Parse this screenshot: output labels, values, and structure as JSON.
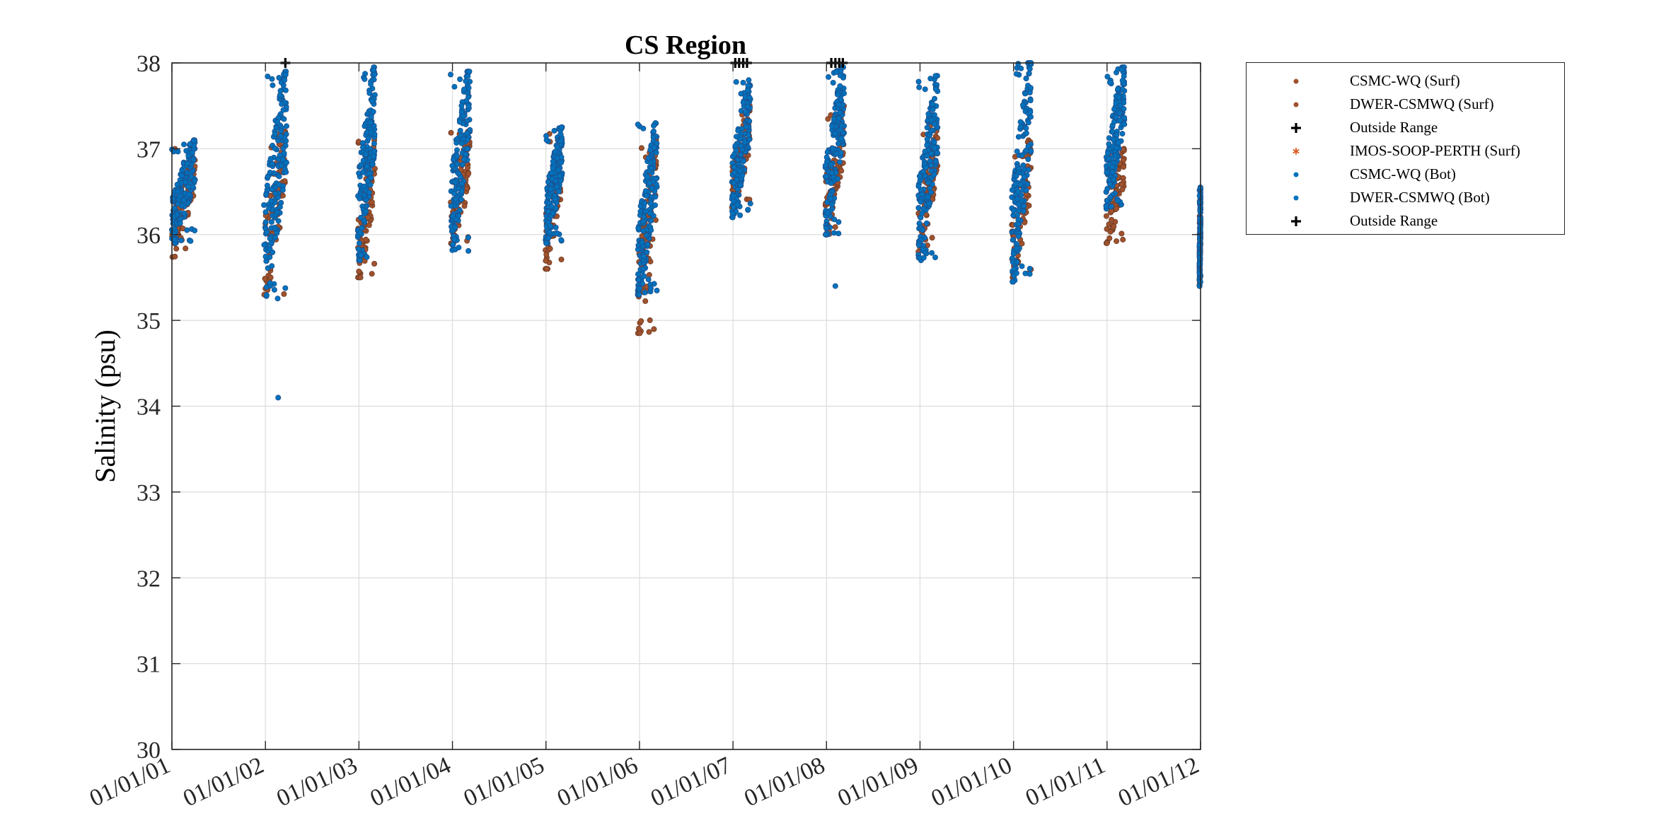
{
  "chart_data": {
    "type": "scatter",
    "title": "CS Region",
    "xlabel": "",
    "ylabel": "Salinity (psu)",
    "ylim": [
      30,
      38
    ],
    "yticks": [
      "30",
      "31",
      "32",
      "33",
      "34",
      "35",
      "36",
      "37",
      "38"
    ],
    "xlim": [
      "2001-01-01",
      "2012-01-01"
    ],
    "xticks": [
      "01/01/01",
      "01/01/02",
      "01/01/03",
      "01/01/04",
      "01/01/05",
      "01/01/06",
      "01/01/07",
      "01/01/08",
      "01/01/09",
      "01/01/10",
      "01/01/11",
      "01/01/12"
    ],
    "grid": true,
    "legend_position": "outside-right",
    "series": [
      {
        "name": "CSMC-WQ (Surf)",
        "marker": "circle",
        "color": "#A0522D",
        "clusters": [
          {
            "x0": "2001-01-01",
            "x1": "2001-04-01",
            "ymin": 35.7,
            "ymax": 37.0
          },
          {
            "x0": "2001-12-25",
            "x1": "2002-03-20",
            "ymin": 35.3,
            "ymax": 37.2
          },
          {
            "x0": "2002-12-28",
            "x1": "2003-03-05",
            "ymin": 35.5,
            "ymax": 37.1
          },
          {
            "x0": "2003-12-25",
            "x1": "2004-03-10",
            "ymin": 35.8,
            "ymax": 37.2
          },
          {
            "x0": "2004-12-30",
            "x1": "2005-03-05",
            "ymin": 35.6,
            "ymax": 37.2
          },
          {
            "x0": "2005-12-25",
            "x1": "2006-03-10",
            "ymin": 34.85,
            "ymax": 37.1
          },
          {
            "x0": "2006-12-28",
            "x1": "2007-03-10",
            "ymin": 36.3,
            "ymax": 37.5
          },
          {
            "x0": "2007-12-28",
            "x1": "2008-03-10",
            "ymin": 36.0,
            "ymax": 37.5
          },
          {
            "x0": "2008-12-25",
            "x1": "2009-03-10",
            "ymin": 35.8,
            "ymax": 37.3
          },
          {
            "x0": "2009-12-25",
            "x1": "2010-03-10",
            "ymin": 35.5,
            "ymax": 37.1
          },
          {
            "x0": "2010-12-28",
            "x1": "2011-03-10",
            "ymin": 35.9,
            "ymax": 37.0
          },
          {
            "x0": "2011-12-28",
            "x1": "2012-01-01",
            "ymin": 35.4,
            "ymax": 36.3
          }
        ]
      },
      {
        "name": "DWER-CSMWQ (Surf)",
        "marker": "circle",
        "color": "#A0522D",
        "clusters": []
      },
      {
        "name": "Outside Range",
        "marker": "plus",
        "color": "#000000",
        "points": [
          {
            "x": "2002-03-20",
            "y": 38.0
          },
          {
            "x": "2007-01-10",
            "y": 38.0
          },
          {
            "x": "2007-01-25",
            "y": 38.0
          },
          {
            "x": "2007-02-10",
            "y": 38.0
          },
          {
            "x": "2007-02-25",
            "y": 38.0
          },
          {
            "x": "2008-01-20",
            "y": 38.0
          },
          {
            "x": "2008-02-05",
            "y": 38.0
          },
          {
            "x": "2008-02-20",
            "y": 38.0
          },
          {
            "x": "2008-03-05",
            "y": 38.0
          }
        ]
      },
      {
        "name": "IMOS-SOOP-PERTH (Surf)",
        "marker": "star",
        "color": "#D95319",
        "clusters": []
      },
      {
        "name": "CSMC-WQ (Bot)",
        "marker": "circle",
        "color": "#0072BD",
        "clusters": [
          {
            "x0": "2001-01-01",
            "x1": "2001-04-01",
            "ymin": 35.9,
            "ymax": 37.1
          },
          {
            "x0": "2001-12-25",
            "x1": "2002-03-25",
            "ymin": 35.25,
            "ymax": 37.9
          },
          {
            "x0": "2002-12-28",
            "x1": "2003-03-05",
            "ymin": 35.7,
            "ymax": 37.95
          },
          {
            "x0": "2003-12-25",
            "x1": "2004-03-10",
            "ymin": 35.8,
            "ymax": 37.9
          },
          {
            "x0": "2004-12-30",
            "x1": "2005-03-05",
            "ymin": 35.9,
            "ymax": 37.25
          },
          {
            "x0": "2005-12-25",
            "x1": "2006-03-10",
            "ymin": 35.3,
            "ymax": 37.3
          },
          {
            "x0": "2006-12-28",
            "x1": "2007-03-10",
            "ymin": 36.2,
            "ymax": 37.8
          },
          {
            "x0": "2007-12-28",
            "x1": "2008-03-10",
            "ymin": 36.0,
            "ymax": 37.95
          },
          {
            "x0": "2008-12-25",
            "x1": "2009-03-10",
            "ymin": 35.7,
            "ymax": 37.85
          },
          {
            "x0": "2009-12-25",
            "x1": "2010-03-10",
            "ymin": 35.45,
            "ymax": 38.0
          },
          {
            "x0": "2010-12-28",
            "x1": "2011-03-10",
            "ymin": 36.3,
            "ymax": 37.95
          },
          {
            "x0": "2011-12-28",
            "x1": "2012-01-01",
            "ymin": 35.4,
            "ymax": 36.55
          }
        ],
        "points": [
          {
            "x": "2002-02-20",
            "y": 34.1
          },
          {
            "x": "2008-02-05",
            "y": 35.4
          }
        ]
      },
      {
        "name": "DWER-CSMWQ (Bot)",
        "marker": "circle",
        "color": "#0072BD",
        "clusters": []
      },
      {
        "name": "Outside Range",
        "marker": "plus",
        "color": "#000000",
        "points": []
      }
    ]
  },
  "legend": {
    "items": [
      {
        "label": "CSMC-WQ (Surf)",
        "symbol": "circle",
        "color": "#A0522D"
      },
      {
        "label": "DWER-CSMWQ (Surf)",
        "symbol": "circle",
        "color": "#A0522D"
      },
      {
        "label": "Outside Range",
        "symbol": "plus",
        "color": "#000000"
      },
      {
        "label": "IMOS-SOOP-PERTH (Surf)",
        "symbol": "star",
        "color": "#D95319"
      },
      {
        "label": "CSMC-WQ (Bot)",
        "symbol": "circle",
        "color": "#0072BD"
      },
      {
        "label": "DWER-CSMWQ (Bot)",
        "symbol": "circle",
        "color": "#0072BD"
      },
      {
        "label": "Outside Range",
        "symbol": "plus",
        "color": "#000000"
      }
    ]
  }
}
